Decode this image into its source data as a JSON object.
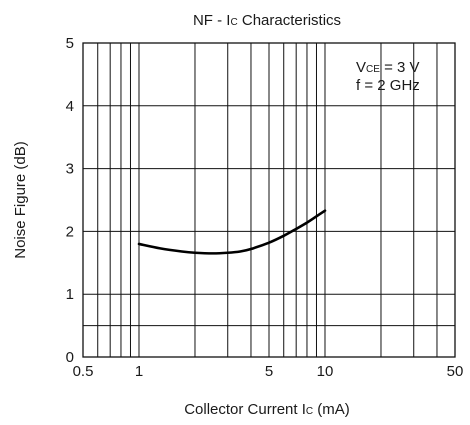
{
  "chart_data": {
    "type": "line",
    "title": "NF - I",
    "title_sub": "C",
    "title_tail": " Characteristics",
    "xlabel": "Collector Current I",
    "xlabel_sub": "C",
    "xlabel_tail": " (mA)",
    "ylabel": "Noise Figure (dB)",
    "x_scale": "log",
    "xlim": [
      0.5,
      50
    ],
    "ylim": [
      0,
      5
    ],
    "x_ticks": [
      {
        "value": 0.5,
        "label": "0.5"
      },
      {
        "value": 1,
        "label": "1"
      },
      {
        "value": 5,
        "label": "5"
      },
      {
        "value": 10,
        "label": "10"
      },
      {
        "value": 50,
        "label": "50"
      }
    ],
    "y_ticks": [
      {
        "value": 0,
        "label": "0"
      },
      {
        "value": 1,
        "label": "1"
      },
      {
        "value": 2,
        "label": "2"
      },
      {
        "value": 3,
        "label": "3"
      },
      {
        "value": 4,
        "label": "4"
      },
      {
        "value": 5,
        "label": "5"
      }
    ],
    "x_grid": [
      0.5,
      0.6,
      0.7,
      0.8,
      0.9,
      1,
      2,
      3,
      4,
      5,
      6,
      7,
      8,
      9,
      10,
      20,
      30,
      40,
      50
    ],
    "y_grid": [
      0,
      0.5,
      1,
      2,
      3,
      4,
      5
    ],
    "grid": true,
    "annotation": {
      "line1_prefix": "V",
      "line1_sub": "CE",
      "line1_tail": " = 3 V",
      "line2": "f = 2 GHz",
      "placement": "top-right"
    },
    "series": [
      {
        "x": [
          1,
          1.3,
          1.7,
          2,
          2.5,
          3,
          3.5,
          4,
          5,
          6,
          7,
          8,
          9,
          10
        ],
        "y": [
          1.8,
          1.73,
          1.68,
          1.66,
          1.65,
          1.66,
          1.68,
          1.72,
          1.82,
          1.93,
          2.04,
          2.14,
          2.24,
          2.33
        ]
      }
    ]
  }
}
